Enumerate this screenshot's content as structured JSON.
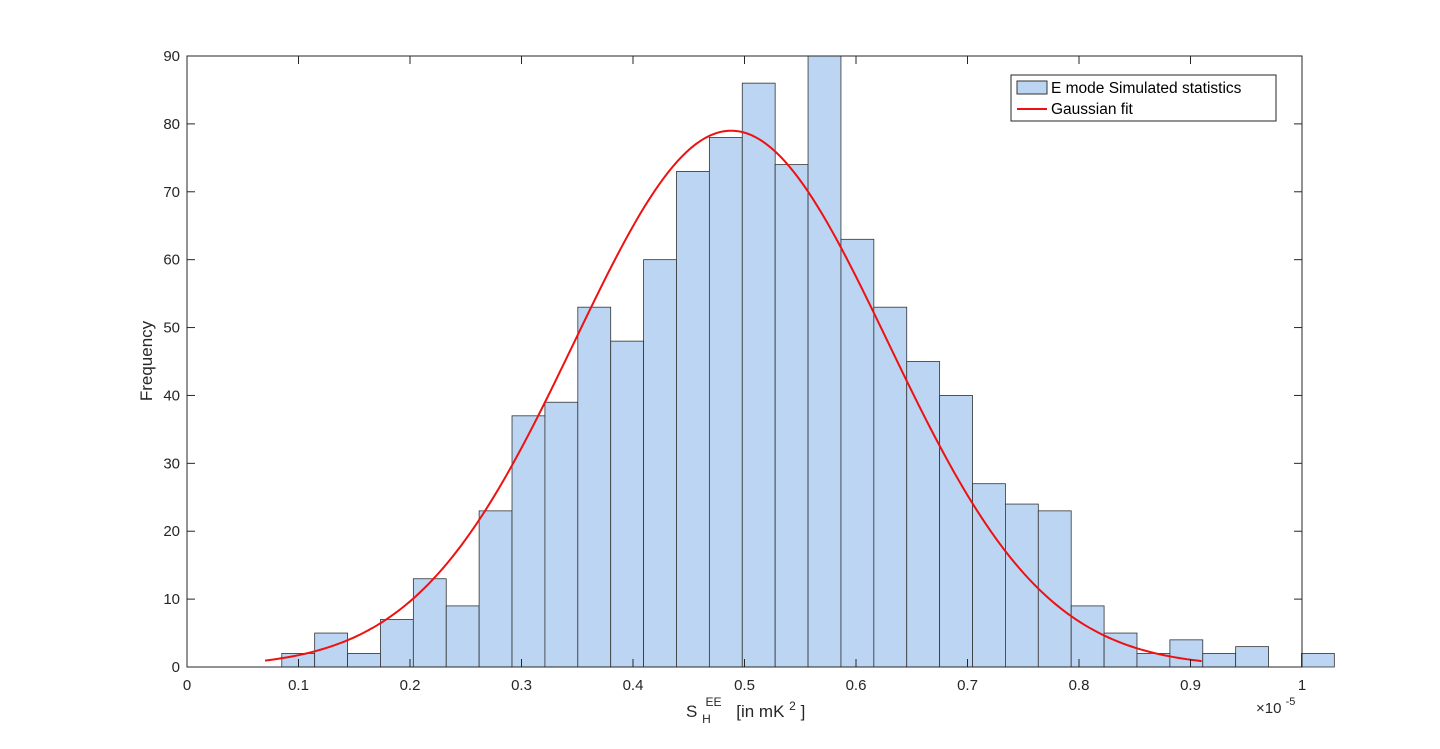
{
  "chart_data": {
    "type": "bar",
    "title": "",
    "ylabel": "Frequency",
    "xlabel": {
      "symbol": "S",
      "sub": "H",
      "sup": "EE",
      "unit_prefix": "[in mK",
      "unit_sup": "2",
      "unit_suffix": "]"
    },
    "x_exponent": {
      "base": "×10",
      "power": "-5"
    },
    "xlim": [
      0,
      1
    ],
    "ylim": [
      0,
      90
    ],
    "xticks": [
      "0",
      "0.1",
      "0.2",
      "0.3",
      "0.4",
      "0.5",
      "0.6",
      "0.7",
      "0.8",
      "0.9",
      "1"
    ],
    "yticks": [
      "0",
      "10",
      "20",
      "30",
      "40",
      "50",
      "60",
      "70",
      "80",
      "90"
    ],
    "xtick_values": [
      0,
      0.1,
      0.2,
      0.3,
      0.4,
      0.5,
      0.6,
      0.7,
      0.8,
      0.9,
      1
    ],
    "ytick_values": [
      0,
      10,
      20,
      30,
      40,
      50,
      60,
      70,
      80,
      90
    ],
    "histogram": {
      "name": "E mode Simulated statistics",
      "color": "#bcd5f2",
      "edge_color": "#333333",
      "bin_start": 0.085,
      "bin_width": 0.0295,
      "counts": [
        2,
        5,
        2,
        7,
        13,
        9,
        23,
        37,
        39,
        53,
        48,
        60,
        73,
        78,
        86,
        74,
        90,
        63,
        53,
        45,
        40,
        27,
        24,
        23,
        9,
        5,
        2,
        4,
        2,
        3,
        0,
        2
      ]
    },
    "fit": {
      "name": "Gaussian fit",
      "color": "#ee1111",
      "type": "gaussian",
      "amplitude": 79,
      "mean": 0.488,
      "sigma": 0.1405,
      "x_range": [
        0.07,
        0.91
      ]
    },
    "legend_position": "top-right",
    "grid": false
  }
}
